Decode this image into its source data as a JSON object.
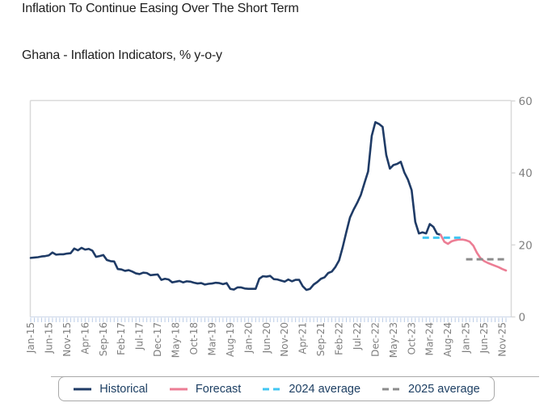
{
  "header": {
    "title": "Inflation To Continue Easing Over The Short Term",
    "subtitle": "Ghana - Inflation Indicators, % y-o-y"
  },
  "chart_data": {
    "type": "line",
    "title": "Inflation To Continue Easing Over The Short Term",
    "subtitle": "Ghana - Inflation Indicators, % y-o-y",
    "ylim": [
      0,
      60
    ],
    "yticks": [
      0,
      20,
      40,
      60
    ],
    "y_tick_labels": [
      "0",
      "20",
      "40",
      "60"
    ],
    "months_total": 132,
    "x_range": [
      "Jan-15",
      "Dec-25"
    ],
    "x_tick_labels": [
      "Jan-15",
      "Jun-15",
      "Nov-15",
      "Apr-16",
      "Sep-16",
      "Feb-17",
      "Jul-17",
      "Dec-17",
      "May-18",
      "Oct-18",
      "Mar-19",
      "Aug-19",
      "Jan-20",
      "Jun-20",
      "Nov-20",
      "Apr-21",
      "Sep-21",
      "Feb-22",
      "Jul-22",
      "Dec-22",
      "May-23",
      "Oct-23",
      "Mar-24",
      "Aug-24",
      "Jan-25",
      "Jun-25",
      "Nov-25"
    ],
    "x_tick_label_step": 5,
    "grid": false,
    "series": [
      {
        "name": "Historical",
        "type": "line",
        "color": "#1f3b66",
        "dash": null,
        "start_index": 0,
        "start_month": "Jan-15",
        "end_month": "Jun-24",
        "values": [
          16.4,
          16.5,
          16.6,
          16.8,
          16.9,
          17.1,
          17.9,
          17.3,
          17.4,
          17.4,
          17.6,
          17.7,
          19.0,
          18.5,
          19.2,
          18.7,
          18.9,
          18.4,
          16.7,
          16.9,
          17.2,
          15.8,
          15.5,
          15.4,
          13.3,
          13.2,
          12.8,
          13.0,
          12.6,
          12.1,
          11.9,
          12.3,
          12.2,
          11.6,
          11.7,
          11.8,
          10.3,
          10.6,
          10.4,
          9.6,
          9.8,
          10.0,
          9.6,
          9.9,
          9.8,
          9.5,
          9.3,
          9.4,
          9.0,
          9.2,
          9.3,
          9.5,
          9.4,
          9.1,
          9.4,
          7.8,
          7.6,
          8.2,
          8.2,
          7.9,
          7.8,
          7.8,
          7.8,
          10.6,
          11.3,
          11.2,
          11.4,
          10.5,
          10.4,
          10.1,
          9.8,
          10.4,
          9.9,
          10.3,
          10.3,
          8.5,
          7.5,
          7.8,
          9.0,
          9.7,
          10.6,
          11.0,
          12.2,
          12.6,
          13.9,
          15.7,
          19.4,
          23.6,
          27.6,
          29.8,
          31.7,
          33.9,
          37.2,
          40.4,
          50.3,
          54.1,
          53.6,
          52.8,
          45.0,
          41.2,
          42.2,
          42.5,
          43.1,
          40.1,
          38.1,
          35.2,
          26.4,
          23.2,
          23.5,
          23.2,
          25.8,
          25.0,
          23.1,
          22.8
        ]
      },
      {
        "name": "Forecast",
        "type": "line",
        "color": "#ec7d94",
        "dash": null,
        "start_index": 113,
        "start_month": "Jun-24",
        "end_month": "Dec-25",
        "values": [
          22.8,
          20.9,
          20.3,
          21.0,
          21.3,
          21.5,
          21.5,
          21.3,
          20.9,
          19.8,
          17.8,
          16.3,
          15.5,
          15.0,
          14.6,
          14.2,
          13.8,
          13.3,
          12.9
        ]
      },
      {
        "name": "2024 average",
        "type": "hline",
        "color": "#41c6f2",
        "dash": "8 5",
        "value": 22,
        "start_index": 108,
        "end_index": 119.5,
        "span": [
          "Jan-24",
          "Dec-24"
        ]
      },
      {
        "name": "2025 average",
        "type": "hline",
        "color": "#8c8c8c",
        "dash": "8 5",
        "value": 16,
        "start_index": 120,
        "end_index": 131,
        "span": [
          "Jan-25",
          "Dec-25"
        ]
      }
    ],
    "legend": {
      "position": "bottom",
      "entries": [
        "Historical",
        "Forecast",
        "2024 average",
        "2025 average"
      ]
    }
  },
  "colors": {
    "historical": "#1f3b66",
    "forecast": "#ec7d94",
    "avg_2024": "#41c6f2",
    "avg_2025": "#8c8c8c",
    "axis_border": "#d9d9d9",
    "axis_bottom": "#ccd6e8",
    "month_tick": "#b9cbe6",
    "axis_label": "#7f7f7f",
    "legend_text": "#1d3f63"
  }
}
